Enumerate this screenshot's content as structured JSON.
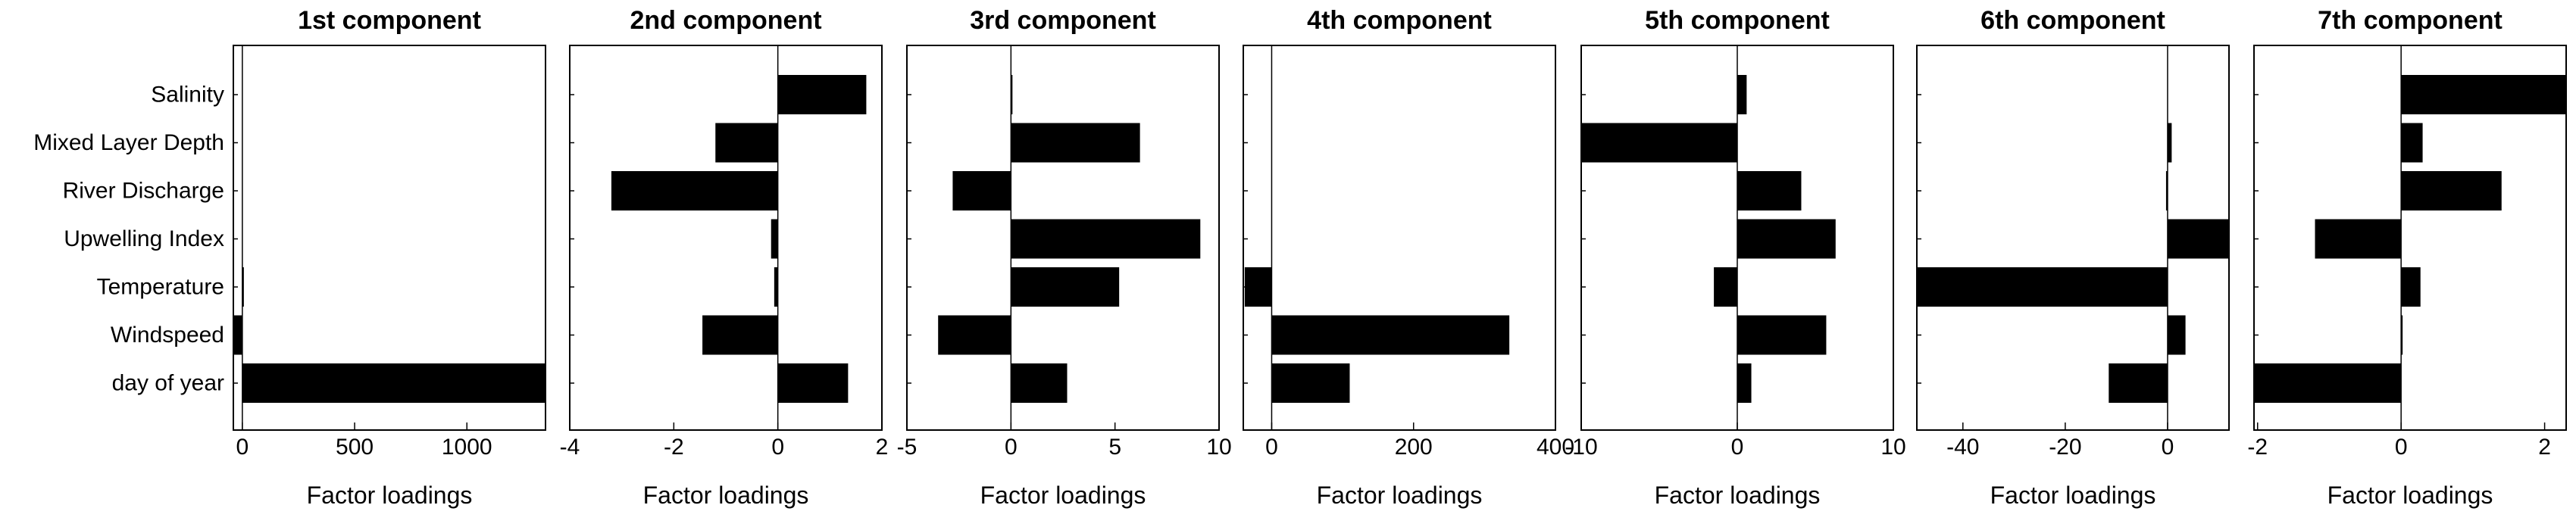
{
  "chart_data": {
    "type": "bar",
    "orientation": "horizontal",
    "bar_color": "#000000",
    "categories": [
      "Salinity",
      "Mixed Layer Depth",
      "River Discharge",
      "Upwelling Index",
      "Temperature",
      "Windspeed",
      "day of year"
    ],
    "panels": [
      {
        "title": "1st component",
        "xlabel": "Factor loadings",
        "xlim": [
          -40,
          1350
        ],
        "xticks": [
          0,
          500,
          1000
        ],
        "xtick_labels": [
          "0",
          "500",
          "1000"
        ],
        "values": [
          0,
          0,
          0,
          0,
          2,
          -40,
          1350
        ]
      },
      {
        "title": "2nd component",
        "xlabel": "Factor loadings",
        "xlim": [
          -4,
          2
        ],
        "xticks": [
          -4,
          -2,
          0,
          2
        ],
        "xtick_labels": [
          "-4",
          "-2",
          "0",
          "2"
        ],
        "values": [
          1.7,
          -1.2,
          -3.2,
          -0.13,
          -0.07,
          -1.45,
          1.35
        ]
      },
      {
        "title": "3rd component",
        "xlabel": "Factor loadings",
        "xlim": [
          -5,
          10
        ],
        "xticks": [
          -5,
          0,
          5,
          10
        ],
        "xtick_labels": [
          "-5",
          "0",
          "5",
          "10"
        ],
        "values": [
          0.05,
          6.2,
          -2.8,
          9.1,
          5.2,
          -3.5,
          2.7
        ]
      },
      {
        "title": "4th component",
        "xlabel": "Factor loadings",
        "xlim": [
          -40,
          400
        ],
        "xticks": [
          0,
          200,
          400
        ],
        "xtick_labels": [
          "0",
          "200",
          "400"
        ],
        "values": [
          0,
          0,
          0,
          0,
          -38,
          335,
          110
        ]
      },
      {
        "title": "5th component",
        "xlabel": "Factor loadings",
        "xlim": [
          -10,
          10
        ],
        "xticks": [
          -10,
          0,
          10
        ],
        "xtick_labels": [
          "-10",
          "0",
          "10"
        ],
        "values": [
          0.6,
          -10,
          4.1,
          6.3,
          -1.5,
          5.7,
          0.9
        ]
      },
      {
        "title": "6th component",
        "xlabel": "Factor loadings",
        "xlim": [
          -49,
          12
        ],
        "xticks": [
          -40,
          -20,
          0
        ],
        "xtick_labels": [
          "-40",
          "-20",
          "0"
        ],
        "values": [
          0,
          0.8,
          -0.3,
          12,
          -49,
          3.5,
          -11.5
        ]
      },
      {
        "title": "7th component",
        "xlabel": "Factor loadings",
        "xlim": [
          -2.05,
          2.3
        ],
        "xticks": [
          -2,
          0,
          2
        ],
        "xtick_labels": [
          "-2",
          "0",
          "2"
        ],
        "values": [
          2.3,
          0.3,
          1.4,
          -1.2,
          0.27,
          0.02,
          -2.05
        ]
      }
    ]
  }
}
